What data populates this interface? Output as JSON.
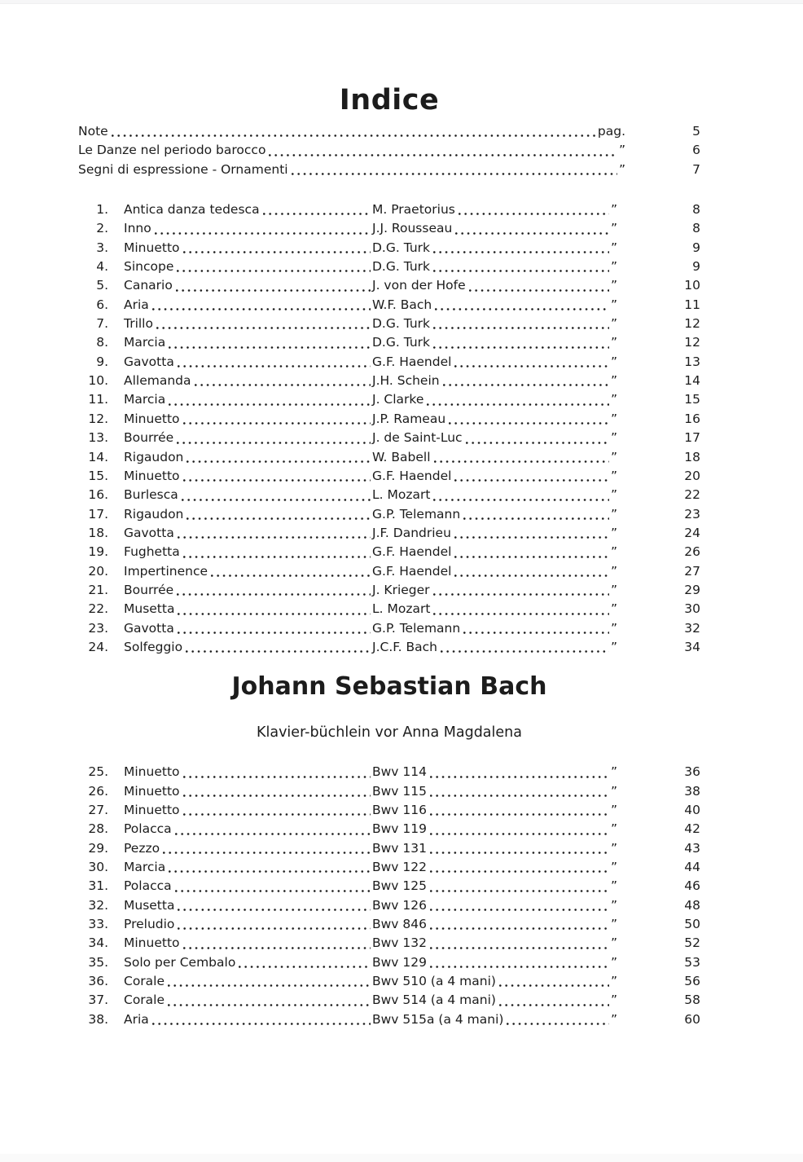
{
  "document": {
    "title": "Indice",
    "marks": {
      "ditto": "”"
    },
    "front_matter": [
      {
        "title": "Note",
        "ref": "pag.",
        "page": "5"
      },
      {
        "title": "Le Danze nel periodo barocco",
        "ref": "”",
        "page": "6"
      },
      {
        "title": "Segni di espressione - Ornamenti",
        "ref": "”",
        "page": "7"
      }
    ],
    "section1_entries": [
      {
        "num": "1.",
        "title": "Antica danza tedesca",
        "composer": "M. Praetorius",
        "page": "8"
      },
      {
        "num": "2.",
        "title": "Inno",
        "composer": "J.J. Rousseau",
        "page": "8"
      },
      {
        "num": "3.",
        "title": "Minuetto",
        "composer": "D.G. Turk",
        "page": "9"
      },
      {
        "num": "4.",
        "title": "Sincope",
        "composer": "D.G. Turk",
        "page": "9"
      },
      {
        "num": "5.",
        "title": "Canario",
        "composer": "J. von der Hofe",
        "page": "10"
      },
      {
        "num": "6.",
        "title": "Aria",
        "composer": "W.F. Bach",
        "page": "11"
      },
      {
        "num": "7.",
        "title": "Trillo",
        "composer": "D.G. Turk",
        "page": "12"
      },
      {
        "num": "8.",
        "title": "Marcia",
        "composer": "D.G. Turk",
        "page": "12"
      },
      {
        "num": "9.",
        "title": "Gavotta",
        "composer": "G.F. Haendel",
        "page": "13"
      },
      {
        "num": "10.",
        "title": "Allemanda",
        "composer": "J.H. Schein",
        "page": "14"
      },
      {
        "num": "11.",
        "title": "Marcia",
        "composer": "J. Clarke",
        "page": "15"
      },
      {
        "num": "12.",
        "title": "Minuetto",
        "composer": "J.P. Rameau",
        "page": "16"
      },
      {
        "num": "13.",
        "title": "Bourrée",
        "composer": "J. de Saint-Luc",
        "page": "17"
      },
      {
        "num": "14.",
        "title": "Rigaudon",
        "composer": "W. Babell",
        "page": "18"
      },
      {
        "num": "15.",
        "title": "Minuetto",
        "composer": "G.F. Haendel",
        "page": "20"
      },
      {
        "num": "16.",
        "title": "Burlesca",
        "composer": "L. Mozart",
        "page": "22"
      },
      {
        "num": "17.",
        "title": "Rigaudon",
        "composer": "G.P. Telemann",
        "page": "23"
      },
      {
        "num": "18.",
        "title": "Gavotta",
        "composer": "J.F. Dandrieu",
        "page": "24"
      },
      {
        "num": "19.",
        "title": "Fughetta",
        "composer": "G.F. Haendel",
        "page": "26"
      },
      {
        "num": "20.",
        "title": "Impertinence",
        "composer": "G.F. Haendel",
        "page": "27"
      },
      {
        "num": "21.",
        "title": "Bourrée",
        "composer": "J. Krieger",
        "page": "29"
      },
      {
        "num": "22.",
        "title": "Musetta",
        "composer": "L. Mozart",
        "page": "30"
      },
      {
        "num": "23.",
        "title": "Gavotta",
        "composer": "G.P. Telemann",
        "page": "32"
      },
      {
        "num": "24.",
        "title": "Solfeggio",
        "composer": "J.C.F. Bach",
        "page": "34"
      }
    ],
    "section2": {
      "heading": "Johann Sebastian Bach",
      "subheading": "Klavier-büchlein vor Anna Magdalena"
    },
    "section2_entries": [
      {
        "num": "25.",
        "title": "Minuetto",
        "composer": "Bwv 114",
        "page": "36"
      },
      {
        "num": "26.",
        "title": "Minuetto",
        "composer": "Bwv 115",
        "page": "38"
      },
      {
        "num": "27.",
        "title": "Minuetto",
        "composer": "Bwv 116",
        "page": "40"
      },
      {
        "num": "28.",
        "title": "Polacca",
        "composer": "Bwv 119",
        "page": "42"
      },
      {
        "num": "29.",
        "title": "Pezzo",
        "composer": "Bwv 131",
        "page": "43"
      },
      {
        "num": "30.",
        "title": "Marcia",
        "composer": "Bwv 122",
        "page": "44"
      },
      {
        "num": "31.",
        "title": "Polacca",
        "composer": "Bwv 125",
        "page": "46"
      },
      {
        "num": "32.",
        "title": "Musetta",
        "composer": "Bwv 126",
        "page": "48"
      },
      {
        "num": "33.",
        "title": "Preludio",
        "composer": "Bwv 846",
        "page": "50"
      },
      {
        "num": "34.",
        "title": "Minuetto",
        "composer": "Bwv 132",
        "page": "52"
      },
      {
        "num": "35.",
        "title": "Solo per Cembalo",
        "composer": "Bwv 129",
        "page": "53"
      },
      {
        "num": "36.",
        "title": "Corale",
        "composer": "Bwv 510 (a 4 mani)",
        "page": "56"
      },
      {
        "num": "37.",
        "title": "Corale",
        "composer": "Bwv 514 (a 4 mani)",
        "page": "58"
      },
      {
        "num": "38.",
        "title": "Aria",
        "composer": "Bwv 515a (a 4 mani)",
        "page": "60"
      }
    ]
  }
}
